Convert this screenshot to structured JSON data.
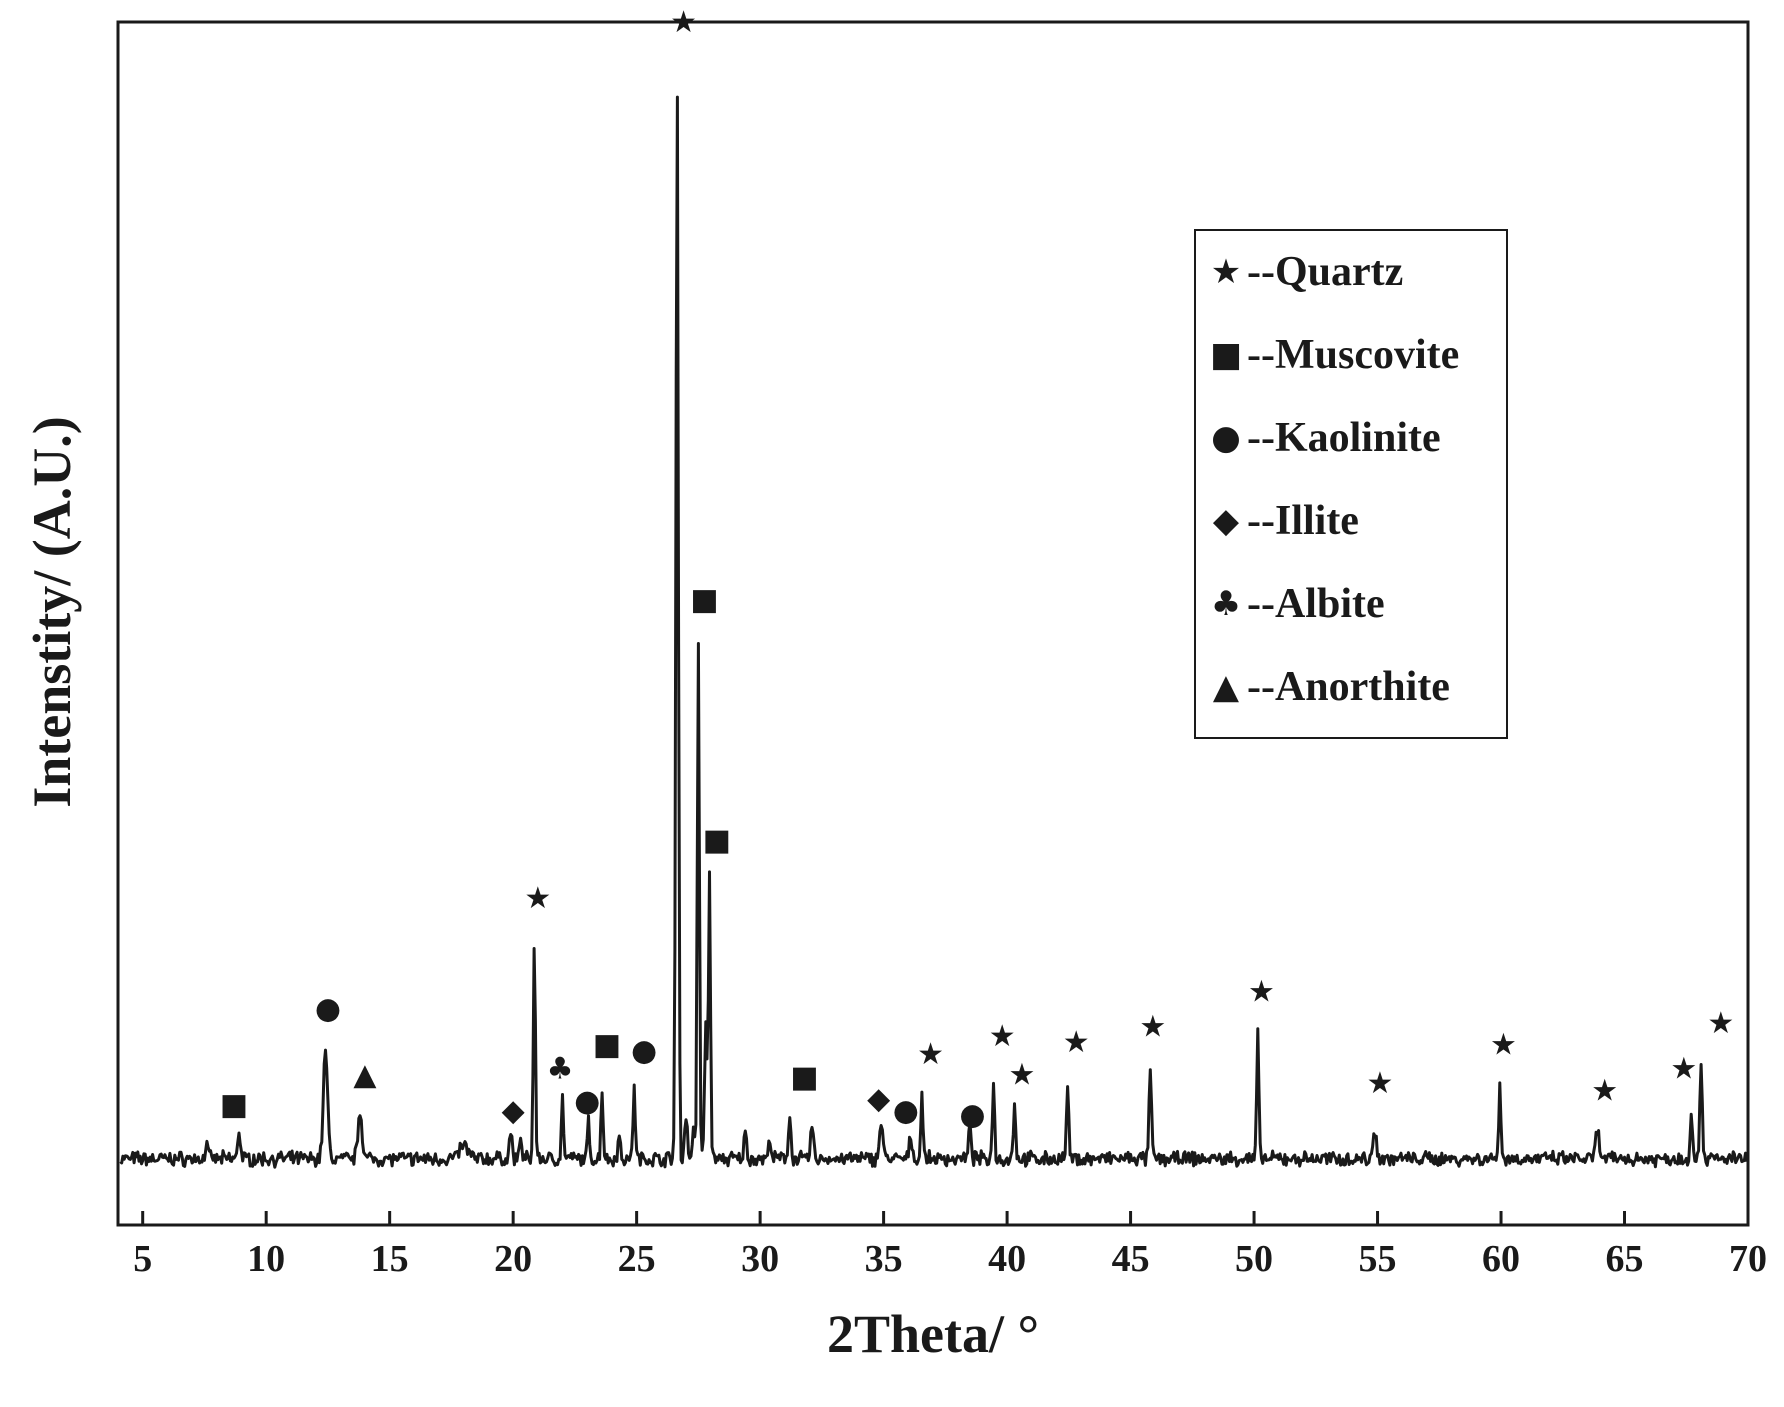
{
  "chart_data": {
    "type": "line",
    "title": "",
    "xlabel": "2Theta/ °",
    "ylabel": "Intenstity/ (A.U.)",
    "xlim": [
      4,
      70
    ],
    "ylim": [
      0,
      1000
    ],
    "x_ticks": [
      5,
      10,
      15,
      20,
      25,
      30,
      35,
      40,
      45,
      50,
      55,
      60,
      65,
      70
    ],
    "grid": false,
    "legend_position": "top-right",
    "line_color": "#1a1a1a",
    "baseline": 55,
    "peaks": [
      {
        "x": 7.6,
        "y": 72,
        "w": 0.06
      },
      {
        "x": 8.9,
        "y": 78,
        "w": 0.08
      },
      {
        "x": 12.4,
        "y": 145,
        "w": 0.12
      },
      {
        "x": 13.8,
        "y": 95,
        "w": 0.12
      },
      {
        "x": 18.0,
        "y": 66,
        "w": 0.25
      },
      {
        "x": 19.9,
        "y": 78,
        "w": 0.07
      },
      {
        "x": 20.3,
        "y": 75,
        "w": 0.06
      },
      {
        "x": 20.86,
        "y": 235,
        "w": 0.06
      },
      {
        "x": 22.0,
        "y": 105,
        "w": 0.06
      },
      {
        "x": 23.05,
        "y": 85,
        "w": 0.06
      },
      {
        "x": 23.6,
        "y": 115,
        "w": 0.06
      },
      {
        "x": 24.3,
        "y": 72,
        "w": 0.08
      },
      {
        "x": 24.9,
        "y": 118,
        "w": 0.06
      },
      {
        "x": 26.64,
        "y": 955,
        "w": 0.07
      },
      {
        "x": 27.0,
        "y": 90,
        "w": 0.08
      },
      {
        "x": 27.3,
        "y": 80,
        "w": 0.07
      },
      {
        "x": 27.5,
        "y": 485,
        "w": 0.06
      },
      {
        "x": 27.8,
        "y": 170,
        "w": 0.07
      },
      {
        "x": 27.95,
        "y": 290,
        "w": 0.06
      },
      {
        "x": 29.4,
        "y": 78,
        "w": 0.07
      },
      {
        "x": 30.4,
        "y": 72,
        "w": 0.07
      },
      {
        "x": 31.2,
        "y": 92,
        "w": 0.07
      },
      {
        "x": 32.1,
        "y": 82,
        "w": 0.08
      },
      {
        "x": 34.9,
        "y": 85,
        "w": 0.1
      },
      {
        "x": 36.1,
        "y": 75,
        "w": 0.07
      },
      {
        "x": 36.55,
        "y": 110,
        "w": 0.06
      },
      {
        "x": 38.5,
        "y": 80,
        "w": 0.08
      },
      {
        "x": 39.45,
        "y": 122,
        "w": 0.06
      },
      {
        "x": 40.3,
        "y": 105,
        "w": 0.06
      },
      {
        "x": 42.45,
        "y": 118,
        "w": 0.06
      },
      {
        "x": 45.8,
        "y": 128,
        "w": 0.07
      },
      {
        "x": 50.15,
        "y": 160,
        "w": 0.06
      },
      {
        "x": 54.9,
        "y": 78,
        "w": 0.1
      },
      {
        "x": 59.95,
        "y": 120,
        "w": 0.06
      },
      {
        "x": 63.9,
        "y": 78,
        "w": 0.1
      },
      {
        "x": 67.7,
        "y": 96,
        "w": 0.06
      },
      {
        "x": 68.1,
        "y": 136,
        "w": 0.07
      }
    ],
    "legend": [
      {
        "marker": "★",
        "label": "--Quartz"
      },
      {
        "marker": "■",
        "label": "--Muscovite"
      },
      {
        "marker": "●",
        "label": "--Kaolinite"
      },
      {
        "marker": "◆",
        "label": "--Illite"
      },
      {
        "marker": "♣",
        "label": "--Albite"
      },
      {
        "marker": "▲",
        "label": "--Anorthite"
      }
    ],
    "annotations": [
      {
        "marker": "■",
        "x": 8.7,
        "y": 100
      },
      {
        "marker": "●",
        "x": 12.5,
        "y": 180
      },
      {
        "marker": "▲",
        "x": 14.0,
        "y": 125
      },
      {
        "marker": "◆",
        "x": 20.0,
        "y": 95
      },
      {
        "marker": "★",
        "x": 21.0,
        "y": 272
      },
      {
        "marker": "♣",
        "x": 21.9,
        "y": 130
      },
      {
        "marker": "●",
        "x": 23.0,
        "y": 103
      },
      {
        "marker": "■",
        "x": 23.8,
        "y": 150
      },
      {
        "marker": "●",
        "x": 25.3,
        "y": 145
      },
      {
        "marker": "★",
        "x": 26.9,
        "y": 1000
      },
      {
        "marker": "■",
        "x": 27.75,
        "y": 520
      },
      {
        "marker": "■",
        "x": 28.25,
        "y": 320
      },
      {
        "marker": "■",
        "x": 31.8,
        "y": 123
      },
      {
        "marker": "◆",
        "x": 34.8,
        "y": 105
      },
      {
        "marker": "●",
        "x": 35.9,
        "y": 95
      },
      {
        "marker": "★",
        "x": 36.9,
        "y": 142
      },
      {
        "marker": "●",
        "x": 38.6,
        "y": 92
      },
      {
        "marker": "★",
        "x": 39.8,
        "y": 157
      },
      {
        "marker": "★",
        "x": 40.6,
        "y": 125
      },
      {
        "marker": "★",
        "x": 42.8,
        "y": 152
      },
      {
        "marker": "★",
        "x": 45.9,
        "y": 165
      },
      {
        "marker": "★",
        "x": 50.3,
        "y": 194
      },
      {
        "marker": "★",
        "x": 55.1,
        "y": 118
      },
      {
        "marker": "★",
        "x": 60.1,
        "y": 150
      },
      {
        "marker": "★",
        "x": 64.2,
        "y": 112
      },
      {
        "marker": "★",
        "x": 67.4,
        "y": 130
      },
      {
        "marker": "★",
        "x": 68.9,
        "y": 168
      }
    ]
  }
}
